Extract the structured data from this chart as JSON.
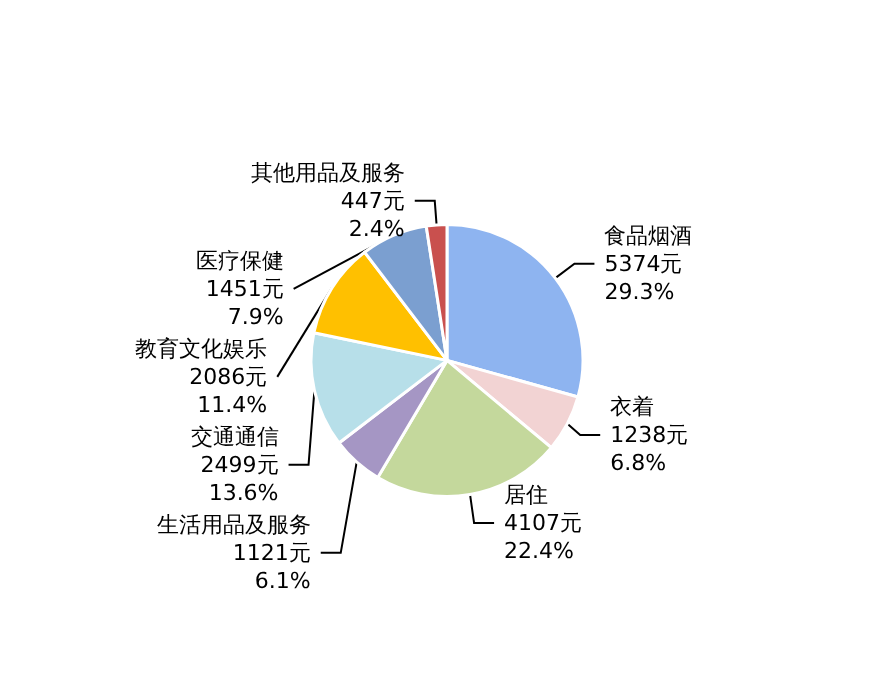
{
  "chart_data": {
    "type": "pie",
    "categories": [
      "食品烟酒",
      "衣着",
      "居住",
      "生活用品及服务",
      "交通通信",
      "教育文化娱乐",
      "医疗保健",
      "其他用品及服务"
    ],
    "values": [
      5374,
      1238,
      4107,
      1121,
      2499,
      2086,
      1451,
      447
    ],
    "value_labels": [
      "5374元\n29.3%",
      "1238元\n6.8%",
      "4107元\n22.4%",
      "1121元\n6.1%",
      "2499元\n13.6%",
      "2086元\n11.4%",
      "1451元\n7.9%",
      "447元\n2.4%"
    ],
    "colors": [
      "#8eb4f0",
      "#f2d3d3",
      "#c4d89c",
      "#a596c4",
      "#b7dfe9",
      "#ffc000",
      "#7b9fd0",
      "#c9504e"
    ],
    "legend": false
  }
}
